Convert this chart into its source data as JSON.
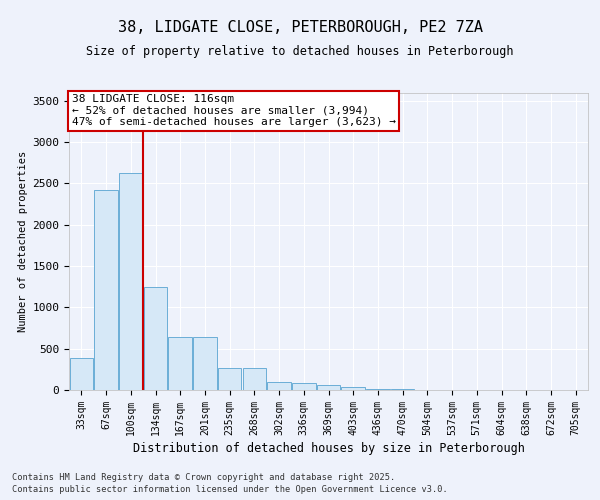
{
  "title_line1": "38, LIDGATE CLOSE, PETERBOROUGH, PE2 7ZA",
  "title_line2": "Size of property relative to detached houses in Peterborough",
  "xlabel": "Distribution of detached houses by size in Peterborough",
  "ylabel": "Number of detached properties",
  "categories": [
    "33sqm",
    "67sqm",
    "100sqm",
    "134sqm",
    "167sqm",
    "201sqm",
    "235sqm",
    "268sqm",
    "302sqm",
    "336sqm",
    "369sqm",
    "403sqm",
    "436sqm",
    "470sqm",
    "504sqm",
    "537sqm",
    "571sqm",
    "604sqm",
    "638sqm",
    "672sqm",
    "705sqm"
  ],
  "values": [
    390,
    2420,
    2630,
    1250,
    640,
    640,
    270,
    270,
    100,
    90,
    55,
    40,
    18,
    8,
    4,
    2,
    1,
    1,
    1,
    0,
    0
  ],
  "bar_color": "#d6e8f7",
  "bar_edge_color": "#6baed6",
  "vline_color": "#cc0000",
  "vline_pos": 2.48,
  "annotation_title": "38 LIDGATE CLOSE: 116sqm",
  "annotation_line1": "← 52% of detached houses are smaller (3,994)",
  "annotation_line2": "47% of semi-detached houses are larger (3,623) →",
  "annotation_box_facecolor": "#ffffff",
  "annotation_box_edgecolor": "#cc0000",
  "ylim": [
    0,
    3600
  ],
  "yticks": [
    0,
    500,
    1000,
    1500,
    2000,
    2500,
    3000,
    3500
  ],
  "footer_line1": "Contains HM Land Registry data © Crown copyright and database right 2025.",
  "footer_line2": "Contains public sector information licensed under the Open Government Licence v3.0.",
  "background_color": "#eef2fb",
  "grid_color": "#ffffff",
  "spine_color": "#bbbbbb"
}
